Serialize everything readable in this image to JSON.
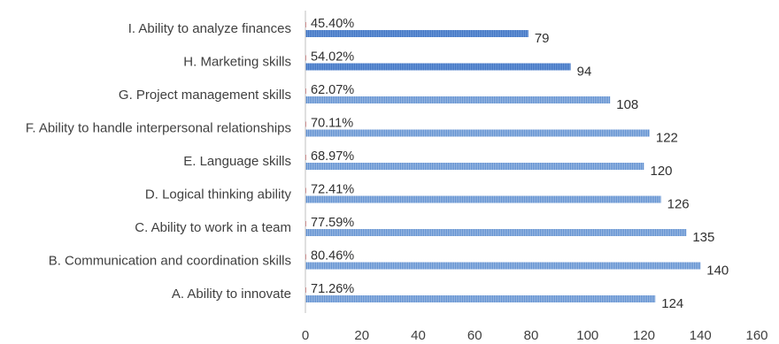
{
  "chart_data": {
    "type": "bar",
    "orientation": "horizontal",
    "categories": [
      "I. Ability to analyze finances",
      "H. Marketing skills",
      "G. Project management skills",
      "F. Ability to handle interpersonal relationships",
      "E. Language skills",
      "D. Logical thinking ability",
      "C. Ability to work in a team",
      "B. Communication and coordination skills",
      "A. Ability to innovate"
    ],
    "series": [
      {
        "values": [
          79,
          94,
          108,
          122,
          120,
          126,
          135,
          140,
          124
        ],
        "color": "#6f9bd6"
      },
      {
        "values": [
          0,
          0,
          0,
          0,
          0,
          0,
          0,
          0,
          0
        ],
        "data_labels": [
          "45.40%",
          "54.02%",
          "62.07%",
          "70.11%",
          "68.97%",
          "72.41%",
          "77.59%",
          "80.46%",
          "71.26%"
        ],
        "color": "#e06666"
      }
    ],
    "xlim": [
      0,
      160
    ],
    "xticks": [
      "0",
      "20",
      "40",
      "60",
      "80",
      "100",
      "120",
      "140",
      "160"
    ],
    "highlighted_categories": [
      "I. Ability to analyze finances",
      "H. Marketing skills"
    ],
    "highlight_color": "#4a7fd0",
    "grid": false,
    "legend": "none"
  }
}
